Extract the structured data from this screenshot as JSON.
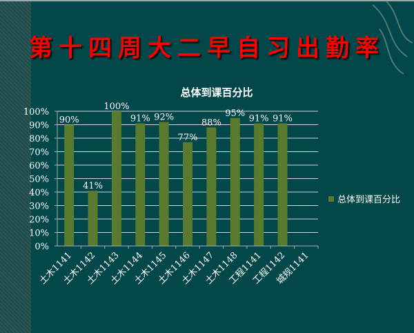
{
  "slide": {
    "title": "第十四周大二早自习出勤率"
  },
  "chart_data": {
    "type": "bar",
    "title": "总体到课百分比",
    "categories": [
      "土木1141",
      "土木1142",
      "土木1143",
      "土木1144",
      "土木1145",
      "土木1146",
      "土木1147",
      "土木1148",
      "工程1141",
      "工程1142",
      "城规1141"
    ],
    "series": [
      {
        "name": "总体到课百分比",
        "values": [
          90,
          41,
          100,
          91,
          92,
          77,
          88,
          95,
          91,
          91,
          null
        ],
        "color": "#5a7a2e"
      }
    ],
    "data_labels": [
      "90%",
      "41%",
      "100%",
      "91%",
      "92%",
      "77%",
      "88%",
      "95%",
      "91%",
      "91%",
      ""
    ],
    "ylim": [
      0,
      100
    ],
    "yticks": [
      "0%",
      "10%",
      "20%",
      "30%",
      "40%",
      "50%",
      "60%",
      "70%",
      "80%",
      "90%",
      "100%"
    ],
    "grid": true,
    "legend_position": "right",
    "colors": {
      "background": "#02484a",
      "title": "#ff0000",
      "grid": "#cfd8d8"
    }
  }
}
